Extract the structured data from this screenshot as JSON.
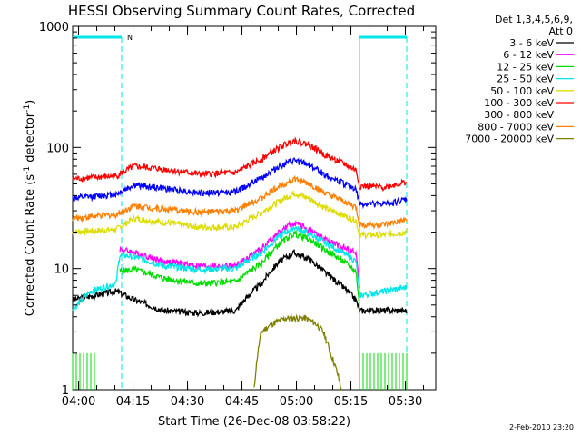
{
  "chart_data": {
    "type": "line",
    "title": "HESSI Observing Summary Count Rates, Corrected",
    "xlabel": "Start Time (26-Dec-08 03:58:22)",
    "ylabel_parts": [
      "Corrected Count Rate (s",
      "-1",
      " detector",
      "-1",
      ")"
    ],
    "y_scale": "log",
    "ylim": [
      1,
      1000
    ],
    "xlim_minutes": [
      0,
      100
    ],
    "y_ticks": [
      {
        "value": 1,
        "label": "1"
      },
      {
        "value": 10,
        "label": "10"
      },
      {
        "value": 100,
        "label": "100"
      },
      {
        "value": 1000,
        "label": "1000"
      }
    ],
    "x_ticks": [
      {
        "minute": 1.633,
        "label": "04:00"
      },
      {
        "minute": 16.633,
        "label": "04:15"
      },
      {
        "minute": 31.633,
        "label": "04:30"
      },
      {
        "minute": 46.633,
        "label": "04:45"
      },
      {
        "minute": 61.633,
        "label": "05:00"
      },
      {
        "minute": 76.633,
        "label": "05:15"
      },
      {
        "minute": 91.633,
        "label": "05:30"
      }
    ],
    "legend_header": [
      "Det 1,3,4,5,6,9,",
      "Att 0"
    ],
    "legend_placement": "right, outside plot",
    "series": [
      {
        "name": "3 - 6 keV",
        "color": "#000000",
        "x": [
          0,
          12,
          17,
          25,
          35,
          45,
          52,
          57,
          61,
          65,
          70,
          78,
          79,
          86,
          92
        ],
        "y": [
          5.5,
          6.5,
          5.5,
          4.5,
          4.3,
          4.5,
          7.5,
          11.5,
          13.5,
          12,
          9,
          5.5,
          4.5,
          4.5,
          4.5
        ]
      },
      {
        "name": "6 - 12 keV",
        "color": "#ff00ff",
        "x": [
          13,
          17,
          25,
          35,
          45,
          52,
          57,
          61,
          65,
          70,
          78,
          79
        ],
        "y": [
          14.5,
          13.5,
          11.5,
          10.5,
          10.5,
          14.5,
          20,
          24,
          21,
          17,
          13.5,
          6.5
        ]
      },
      {
        "name": "12 - 25 keV",
        "color": "#00dd00",
        "x": [
          13,
          17,
          25,
          35,
          45,
          52,
          57,
          61,
          65,
          70,
          78,
          79
        ],
        "y": [
          9.5,
          9.8,
          8.3,
          7.5,
          7.8,
          11,
          16,
          19.5,
          17.5,
          14,
          9.5,
          4.5
        ]
      },
      {
        "name": "25 - 50 keV",
        "color": "#00e5e5",
        "x": [
          0,
          5,
          12,
          13,
          17,
          25,
          35,
          45,
          52,
          57,
          61,
          65,
          70,
          78,
          79,
          86,
          92
        ],
        "y": [
          4.5,
          6.5,
          7.5,
          13,
          12.5,
          10.5,
          9.8,
          10,
          13.5,
          18.5,
          22,
          19.5,
          16,
          11.5,
          6,
          6.5,
          7
        ]
      },
      {
        "name": "50 - 100 keV",
        "color": "#dddd00",
        "x": [
          0,
          12,
          17,
          25,
          35,
          45,
          52,
          57,
          61,
          65,
          70,
          78,
          79,
          86,
          92
        ],
        "y": [
          20,
          21,
          26,
          24,
          22,
          22,
          29,
          36,
          42,
          38,
          31,
          25,
          19,
          19,
          20
        ]
      },
      {
        "name": "100 - 300 keV",
        "color": "#ff0000",
        "x": [
          0,
          12,
          17,
          25,
          35,
          45,
          52,
          57,
          61,
          65,
          70,
          78,
          79,
          86,
          92
        ],
        "y": [
          55,
          58,
          70,
          66,
          60,
          62,
          80,
          100,
          115,
          105,
          85,
          65,
          48,
          47,
          52
        ]
      },
      {
        "name": "300 - 800 keV",
        "color": "#ffffff",
        "x": [
          0,
          92
        ],
        "y": [
          1,
          1
        ]
      },
      {
        "name": "800 - 7000 keV",
        "color": "#ff8000",
        "x": [
          0,
          12,
          17,
          25,
          35,
          45,
          52,
          57,
          61,
          65,
          70,
          78,
          79,
          86,
          92
        ],
        "y": [
          26,
          28,
          33,
          31,
          29,
          30,
          38,
          48,
          55,
          50,
          41,
          32,
          23,
          23,
          25
        ]
      },
      {
        "name": "7000 - 20000 keV",
        "color": "#808000",
        "x": [
          50,
          52,
          55,
          59,
          64,
          67,
          69,
          71,
          74
        ],
        "y": [
          1,
          3,
          3.5,
          3.9,
          3.9,
          3.5,
          3,
          2,
          1
        ]
      }
    ],
    "extra_series": [
      {
        "name": "blue",
        "color": "#0000ff",
        "x": [
          0,
          12,
          17,
          25,
          35,
          45,
          52,
          57,
          61,
          65,
          70,
          78,
          79,
          86,
          92
        ],
        "y": [
          38,
          41,
          49,
          46,
          42,
          43,
          56,
          70,
          78,
          72,
          58,
          45,
          34,
          34,
          37
        ]
      }
    ],
    "annotations": {
      "attenuator_marker": "N",
      "lines_minutes": [
        13.5,
        79,
        92
      ]
    },
    "footer": "2-Feb-2010 23:20"
  }
}
